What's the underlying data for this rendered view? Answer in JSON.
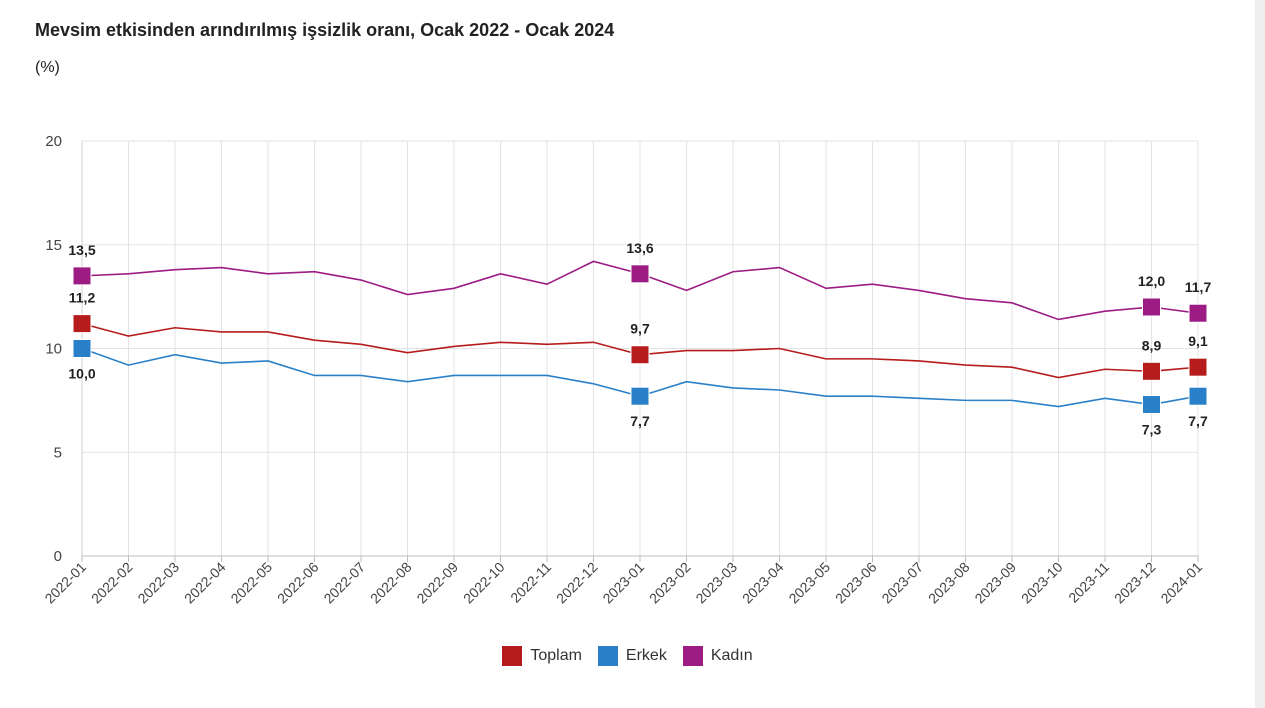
{
  "title": "Mevsim etkisinden arındırılmış işsizlik oranı, Ocak 2022 - Ocak 2024",
  "subtitle": "(%)",
  "chart_data": {
    "type": "line",
    "title": "Mevsim etkisinden arındırılmış işsizlik oranı, Ocak 2022 - Ocak 2024",
    "ylabel": "(%)",
    "ylim": [
      0,
      20
    ],
    "yticks": [
      0,
      5,
      10,
      15,
      20
    ],
    "grid": true,
    "legend": "bottom",
    "categories": [
      "2022-01",
      "2022-02",
      "2022-03",
      "2022-04",
      "2022-05",
      "2022-06",
      "2022-07",
      "2022-08",
      "2022-09",
      "2022-10",
      "2022-11",
      "2022-12",
      "2023-01",
      "2023-02",
      "2023-03",
      "2023-04",
      "2023-05",
      "2023-06",
      "2023-07",
      "2023-08",
      "2023-09",
      "2023-10",
      "2023-11",
      "2023-12",
      "2024-01"
    ],
    "series": [
      {
        "name": "Toplam",
        "color": "#b71c1c",
        "values": [
          11.2,
          10.6,
          11.0,
          10.8,
          10.8,
          10.4,
          10.2,
          9.8,
          10.1,
          10.3,
          10.2,
          10.3,
          9.7,
          9.9,
          9.9,
          10.0,
          9.5,
          9.5,
          9.4,
          9.2,
          9.1,
          8.6,
          9.0,
          8.9,
          9.1
        ],
        "labels": [
          {
            "index": 0,
            "text": "11,2"
          },
          {
            "index": 12,
            "text": "9,7"
          },
          {
            "index": 23,
            "text": "8,9"
          },
          {
            "index": 24,
            "text": "9,1"
          }
        ]
      },
      {
        "name": "Erkek",
        "color": "#2a80c8",
        "values": [
          10.0,
          9.2,
          9.7,
          9.3,
          9.4,
          8.7,
          8.7,
          8.4,
          8.7,
          8.7,
          8.7,
          8.3,
          7.7,
          8.4,
          8.1,
          8.0,
          7.7,
          7.7,
          7.6,
          7.5,
          7.5,
          7.2,
          7.6,
          7.3,
          7.7
        ],
        "labels": [
          {
            "index": 0,
            "text": "10,0"
          },
          {
            "index": 12,
            "text": "7,7"
          },
          {
            "index": 23,
            "text": "7,3"
          },
          {
            "index": 24,
            "text": "7,7"
          }
        ]
      },
      {
        "name": "Kadın",
        "color": "#9c1c84",
        "values": [
          13.5,
          13.6,
          13.8,
          13.9,
          13.6,
          13.7,
          13.3,
          12.6,
          12.9,
          13.6,
          13.1,
          14.2,
          13.6,
          12.8,
          13.7,
          13.9,
          12.9,
          13.1,
          12.8,
          12.4,
          12.2,
          11.4,
          11.8,
          12.0,
          11.7
        ],
        "labels": [
          {
            "index": 0,
            "text": "13,5"
          },
          {
            "index": 12,
            "text": "13,6"
          },
          {
            "index": 23,
            "text": "12,0"
          },
          {
            "index": 24,
            "text": "11,7"
          }
        ]
      }
    ]
  }
}
